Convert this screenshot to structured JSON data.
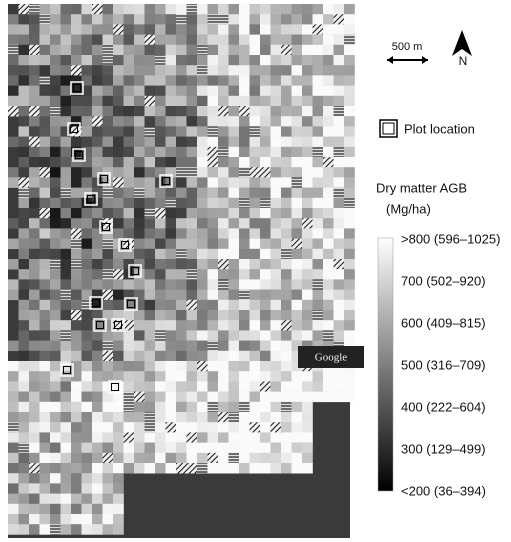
{
  "scale_bar": {
    "label": "500 m"
  },
  "north_arrow": {
    "label": "N"
  },
  "plot_legend": {
    "label": "Plot location"
  },
  "color_legend": {
    "title": "Dry matter AGB",
    "unit": "(Mg/ha)",
    "labels": [
      ">800 (596–1025)",
      "700 (502–920)",
      "600 (409–815)",
      "500 (316–709)",
      "400 (222–604)",
      "300 (129–499)",
      "<200 (36–394)"
    ]
  },
  "watermark": "Google"
}
